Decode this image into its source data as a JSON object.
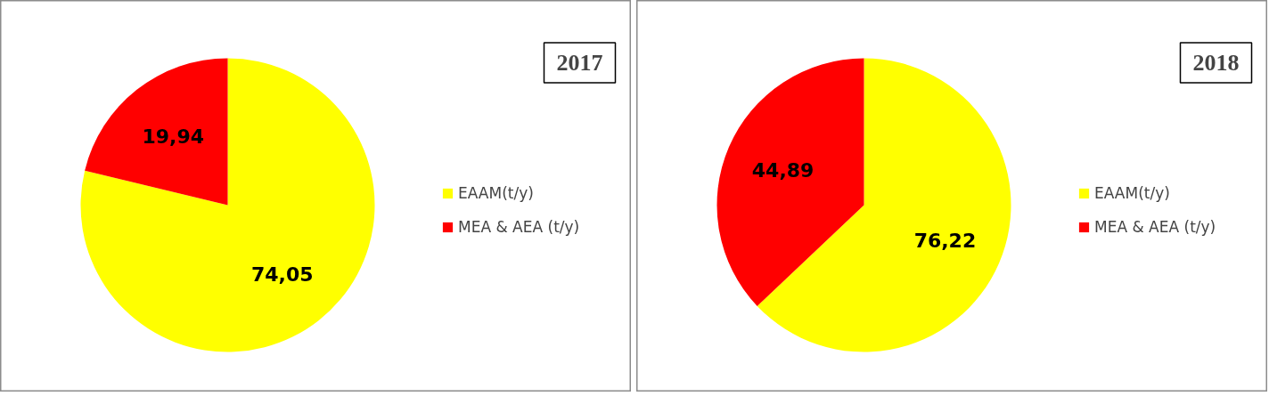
{
  "chart_data": [
    {
      "type": "pie",
      "title": "2017",
      "categories": [
        "EAAM(t/y)",
        "MEA & AEA (t/y)"
      ],
      "values": [
        74.05,
        19.94
      ],
      "colors": [
        "#ffff00",
        "#ff0000"
      ],
      "value_labels": [
        "74,05",
        "19,94"
      ],
      "legend": "right"
    },
    {
      "type": "pie",
      "title": "2018",
      "categories": [
        "EAAM(t/y)",
        "MEA & AEA (t/y)"
      ],
      "values": [
        76.22,
        44.89
      ],
      "colors": [
        "#ffff00",
        "#ff0000"
      ],
      "value_labels": [
        "76,22",
        "44,89"
      ],
      "legend": "right"
    }
  ]
}
